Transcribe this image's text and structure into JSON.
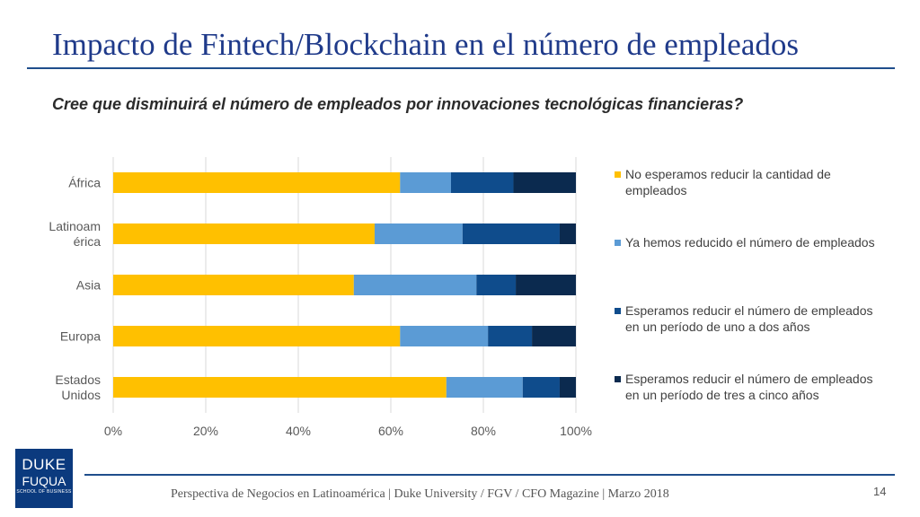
{
  "slide": {
    "title": "Impacto de Fintech/Blockchain en el número de empleados",
    "subtitle": "Cree que disminuirá el número de empleados por innovaciones tecnológicas financieras?",
    "footer": "Perspectiva de Negocios en Latinoamérica | Duke University / FGV / CFO Magazine | Marzo 2018",
    "page_number": "14",
    "logo": {
      "line1": "DUKE",
      "line2": "FUQUA",
      "line3": "SCHOOL OF BUSINESS"
    }
  },
  "chart_data": {
    "type": "bar",
    "orientation": "horizontal",
    "stacked": "percent",
    "categories": [
      "África",
      "Latinoam érica",
      "Asia",
      "Europa",
      "Estados Unidos"
    ],
    "series": [
      {
        "name": "No esperamos reducir la cantidad de empleados",
        "color": "#FFC000",
        "values": [
          62,
          56.5,
          52,
          62,
          72
        ]
      },
      {
        "name": "Ya hemos reducido el número de empleados",
        "color": "#5B9BD5",
        "values": [
          11,
          19,
          26.5,
          19,
          16.5
        ]
      },
      {
        "name": "Esperamos reducir el número de empleados en un período de uno a dos años",
        "color": "#0F4C8C",
        "values": [
          13.5,
          21,
          8.5,
          9.5,
          8
        ]
      },
      {
        "name": "Esperamos reducir el número de empleados en un período de tres a cinco años",
        "color": "#0B2A4F",
        "values": [
          13.5,
          3.5,
          13,
          9.5,
          3.5
        ]
      }
    ],
    "xlim": [
      0,
      100
    ],
    "xticks": [
      "0%",
      "20%",
      "40%",
      "60%",
      "80%",
      "100%"
    ],
    "grid": true,
    "legend_position": "right"
  }
}
